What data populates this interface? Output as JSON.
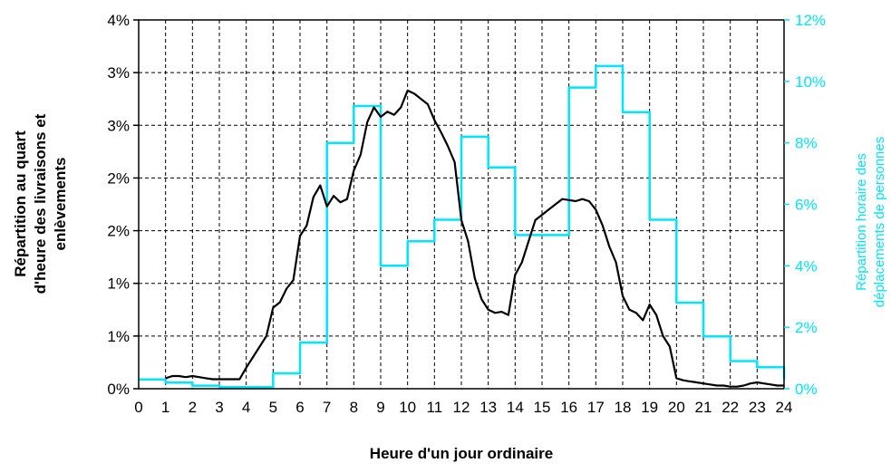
{
  "colors": {
    "deliveries_series": "#000000",
    "trips_series": "#00e5ff",
    "right_axis_text": "#00e5ff",
    "grid": "#000000",
    "background": "#ffffff"
  },
  "chart_data": {
    "type": "line",
    "title": "",
    "xlabel": "Heure d'un jour ordinaire",
    "ylabel_left": [
      "Répartition au quart",
      "d'heure des livraisons et",
      "enlèvements"
    ],
    "ylabel_right": [
      "Répartition horaire des",
      "déplacements de personnes"
    ],
    "x_ticks": [
      "0",
      "1",
      "2",
      "3",
      "4",
      "5",
      "6",
      "7",
      "8",
      "9",
      "10",
      "11",
      "12",
      "13",
      "14",
      "15",
      "16",
      "17",
      "18",
      "19",
      "20",
      "21",
      "22",
      "23",
      "24"
    ],
    "xlim": [
      0,
      24
    ],
    "y_left_ticks": [
      "0%",
      "1%",
      "1%",
      "2%",
      "2%",
      "3%",
      "3%",
      "4%"
    ],
    "y_left_range": [
      0,
      3.5
    ],
    "y_right_ticks": [
      "0%",
      "2%",
      "4%",
      "6%",
      "8%",
      "10%",
      "12%"
    ],
    "y_right_range": [
      0,
      12
    ],
    "grid": true,
    "grid_style": "dashed",
    "series": [
      {
        "axis": "left",
        "step": false,
        "x": [
          1,
          1.25,
          1.5,
          1.75,
          2,
          2.25,
          2.5,
          2.75,
          3,
          3.25,
          3.5,
          3.75,
          4,
          4.25,
          4.5,
          4.75,
          5,
          5.25,
          5.5,
          5.75,
          6,
          6.25,
          6.5,
          6.75,
          7,
          7.25,
          7.5,
          7.75,
          8,
          8.25,
          8.5,
          8.75,
          9,
          9.25,
          9.5,
          9.75,
          10,
          10.25,
          10.5,
          10.75,
          11,
          11.25,
          11.5,
          11.75,
          12,
          12.25,
          12.5,
          12.75,
          13,
          13.25,
          13.5,
          13.75,
          14,
          14.25,
          14.5,
          14.75,
          15,
          15.25,
          15.5,
          15.75,
          16,
          16.25,
          16.5,
          16.75,
          17,
          17.25,
          17.5,
          17.75,
          18,
          18.25,
          18.5,
          18.75,
          19,
          19.25,
          19.5,
          19.75,
          20,
          20.25,
          20.5,
          20.75,
          21,
          21.25,
          21.5,
          21.75,
          22,
          22.25,
          22.5,
          22.75,
          23,
          23.25,
          23.5,
          23.75,
          24
        ],
        "values": [
          0.1,
          0.12,
          0.12,
          0.11,
          0.12,
          0.11,
          0.1,
          0.09,
          0.09,
          0.09,
          0.09,
          0.09,
          0.2,
          0.3,
          0.4,
          0.5,
          0.77,
          0.82,
          0.95,
          1.03,
          1.45,
          1.55,
          1.82,
          1.93,
          1.73,
          1.83,
          1.77,
          1.8,
          2.07,
          2.22,
          2.53,
          2.67,
          2.58,
          2.63,
          2.6,
          2.67,
          2.83,
          2.8,
          2.75,
          2.7,
          2.55,
          2.43,
          2.3,
          2.15,
          1.6,
          1.4,
          1.05,
          0.85,
          0.75,
          0.72,
          0.73,
          0.7,
          1.08,
          1.2,
          1.4,
          1.6,
          1.65,
          1.7,
          1.75,
          1.8,
          1.79,
          1.78,
          1.8,
          1.78,
          1.7,
          1.55,
          1.35,
          1.2,
          0.88,
          0.75,
          0.72,
          0.65,
          0.8,
          0.7,
          0.5,
          0.4,
          0.1,
          0.08,
          0.07,
          0.06,
          0.05,
          0.04,
          0.03,
          0.03,
          0.02,
          0.02,
          0.03,
          0.05,
          0.06,
          0.05,
          0.04,
          0.03,
          0.03
        ]
      },
      {
        "axis": "right",
        "step": true,
        "x": [
          0,
          1,
          2,
          3,
          4,
          5,
          6,
          7,
          7.5,
          8,
          8.5,
          9,
          9.5,
          10,
          10.5,
          11,
          11.5,
          12,
          12.5,
          13,
          13.5,
          14,
          14.5,
          15,
          15.5,
          16,
          16.5,
          17,
          17.5,
          18,
          18.5,
          19,
          19.5,
          20,
          20.5,
          21,
          21.5,
          22,
          22.5,
          23,
          23.5,
          24
        ],
        "values": [
          0.3,
          0.2,
          0.1,
          0.05,
          0.05,
          0.5,
          1.5,
          8,
          8,
          9.2,
          9.2,
          4,
          4,
          4.8,
          4.8,
          5.5,
          5.5,
          8.2,
          8.2,
          7.2,
          7.2,
          5,
          5,
          5,
          5,
          9.8,
          9.8,
          10.5,
          10.5,
          9,
          9,
          5.5,
          5.5,
          2.8,
          2.8,
          1.7,
          1.7,
          0.9,
          0.9,
          0.7,
          0.7,
          0.3
        ]
      }
    ]
  }
}
